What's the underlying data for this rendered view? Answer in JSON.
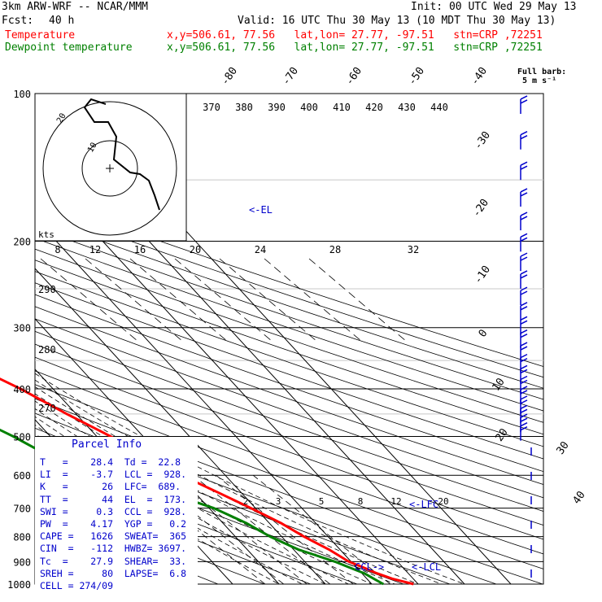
{
  "header": {
    "model": "3km ARW-WRF -- NCAR/MMM",
    "init": "Init: 00 UTC Wed 29 May 13",
    "fcst_label": "Fcst:",
    "fcst_value": "40 h",
    "valid": "Valid: 16 UTC Thu 30 May 13 (10 MDT Thu 30 May 13)",
    "temp_label": "Temperature",
    "temp_info": "x,y=506.61, 77.56   lat,lon= 27.77, -97.51   stn=CRP ,72251",
    "dew_label": "Dewpoint temperature",
    "dew_info": "x,y=506.61, 77.56   lat,lon= 27.77, -97.51   stn=CRP ,72251"
  },
  "wind_barb_legend": {
    "line1": "Full barb:",
    "line2": "5 m s⁻¹"
  },
  "hodograph": {
    "unit": "kts",
    "ring_labels": [
      "20",
      "10"
    ],
    "tick_labels": [
      "8",
      "12",
      "16",
      "20",
      "24",
      "28",
      "32"
    ]
  },
  "theta_labels": [
    "370",
    "380",
    "390",
    "400",
    "410",
    "420",
    "430",
    "440"
  ],
  "theta_side_labels": [
    "290",
    "280",
    "270"
  ],
  "mixing_ratio_labels": [
    "2",
    "3",
    "5",
    "8",
    "12",
    "20"
  ],
  "annotations": {
    "el": "<-EL",
    "lfc": "<-LFC",
    "lcl": "<-LCL",
    "ccl": "CCL->"
  },
  "parcel_info": {
    "title": "Parcel Info",
    "rows": [
      "T   =    28.4  Td =  22.8",
      "LI  =    -3.7  LCL =  928.",
      "K   =      26  LFC=  689.",
      "TT  =      44  EL  =  173.",
      "SWI =     0.3  CCL =  928.",
      "PW  =    4.17  YGP =   0.2",
      "CAPE =   1626  SWEAT=  365",
      "CIN  =   -112  HWBZ= 3697.",
      "Tc  =    27.9  SHEAR=  33.",
      "SREH =     80  LAPSE=  6.8",
      "CELL = 274/09"
    ]
  },
  "colors": {
    "temperature": "#ff0000",
    "dewpoint": "#008000",
    "wind": "#0000cc",
    "grid": "#000000"
  },
  "chart_data": {
    "type": "line",
    "subtype": "skew-T log-P sounding",
    "y_axis": {
      "label": "",
      "scale": "log",
      "unit": "hPa",
      "ticks": [
        100,
        200,
        300,
        400,
        500,
        600,
        700,
        800,
        900,
        1000
      ]
    },
    "isotherm_labels": [
      "-80",
      "-70",
      "-60",
      "-50",
      "-40",
      "-30",
      "-20",
      "-10",
      "0",
      "10",
      "20",
      "30",
      "40"
    ],
    "series": [
      {
        "name": "Temperature",
        "points": [
          {
            "p": 1000,
            "t": 29.0
          },
          {
            "p": 975,
            "t": 25.5
          },
          {
            "p": 950,
            "t": 23.2
          },
          {
            "p": 925,
            "t": 21.5
          },
          {
            "p": 900,
            "t": 19.5
          },
          {
            "p": 850,
            "t": 17.6
          },
          {
            "p": 800,
            "t": 14.8
          },
          {
            "p": 750,
            "t": 12.5
          },
          {
            "p": 700,
            "t": 9.0
          },
          {
            "p": 650,
            "t": 5.0
          },
          {
            "p": 600,
            "t": 0.5
          },
          {
            "p": 550,
            "t": -3.5
          },
          {
            "p": 500,
            "t": -7.0
          },
          {
            "p": 450,
            "t": -12.0
          },
          {
            "p": 400,
            "t": -17.0
          },
          {
            "p": 350,
            "t": -24.0
          },
          {
            "p": 300,
            "t": -31.5
          },
          {
            "p": 250,
            "t": -41.0
          },
          {
            "p": 200,
            "t": -52.0
          },
          {
            "p": 175,
            "t": -59.0
          },
          {
            "p": 150,
            "t": -63.0
          },
          {
            "p": 125,
            "t": -64.5
          },
          {
            "p": 100,
            "t": -67.5
          }
        ]
      },
      {
        "name": "Dewpoint temperature",
        "points": [
          {
            "p": 1000,
            "t": 22.5
          },
          {
            "p": 975,
            "t": 21.5
          },
          {
            "p": 950,
            "t": 20.5
          },
          {
            "p": 925,
            "t": 18.5
          },
          {
            "p": 900,
            "t": 16.5
          },
          {
            "p": 850,
            "t": 11.0
          },
          {
            "p": 800,
            "t": 7.5
          },
          {
            "p": 750,
            "t": 5.0
          },
          {
            "p": 700,
            "t": 1.0
          },
          {
            "p": 650,
            "t": -6.0
          },
          {
            "p": 600,
            "t": -15.0
          },
          {
            "p": 550,
            "t": -24.0
          },
          {
            "p": 500,
            "t": -28.0
          },
          {
            "p": 450,
            "t": -33.5
          },
          {
            "p": 400,
            "t": -38.0
          },
          {
            "p": 350,
            "t": -44.0
          },
          {
            "p": 300,
            "t": -51.0
          },
          {
            "p": 250,
            "t": -60.0
          },
          {
            "p": 200,
            "t": -69.0
          },
          {
            "p": 175,
            "t": -71.0
          },
          {
            "p": 150,
            "t": -71.5
          },
          {
            "p": 125,
            "t": -75.0
          },
          {
            "p": 100,
            "t": -80.0
          }
        ]
      }
    ],
    "hodograph_kts": [
      [
        0,
        -12
      ],
      [
        4,
        -14
      ],
      [
        8,
        -14
      ],
      [
        10,
        -10
      ],
      [
        10,
        -6
      ],
      [
        4,
        -6
      ],
      [
        4,
        4
      ],
      [
        6,
        8
      ],
      [
        4,
        12
      ],
      [
        -4,
        16
      ],
      [
        -6,
        20
      ]
    ],
    "wind_barb_pressures": [
      110,
      130,
      150,
      170,
      190,
      210,
      230,
      250,
      270,
      290,
      310,
      330,
      350,
      370,
      390,
      410,
      430,
      450,
      470,
      490,
      510
    ]
  }
}
